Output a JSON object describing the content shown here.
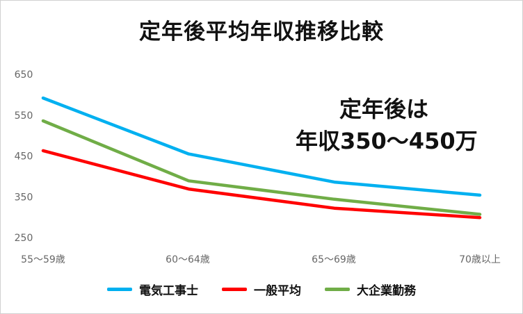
{
  "chart_data": {
    "type": "line",
    "title": "定年後平均年収推移比較",
    "annotation": [
      "定年後は",
      "年収350〜450万"
    ],
    "categories": [
      "55〜59歳",
      "60〜64歳",
      "65〜69歳",
      "70歳以上"
    ],
    "yticks": [
      "650",
      "550",
      "450",
      "350",
      "250"
    ],
    "ylim": [
      250,
      650
    ],
    "grid": false,
    "legend_position": "bottom",
    "series": [
      {
        "name": "電気工事士",
        "color": "#00b0f0",
        "values": [
          592,
          455,
          386,
          354
        ]
      },
      {
        "name": "一般平均",
        "color": "#ff0000",
        "values": [
          463,
          369,
          322,
          299
        ]
      },
      {
        "name": "大企業勤務",
        "color": "#70ad47",
        "values": [
          536,
          389,
          344,
          307
        ]
      }
    ]
  }
}
